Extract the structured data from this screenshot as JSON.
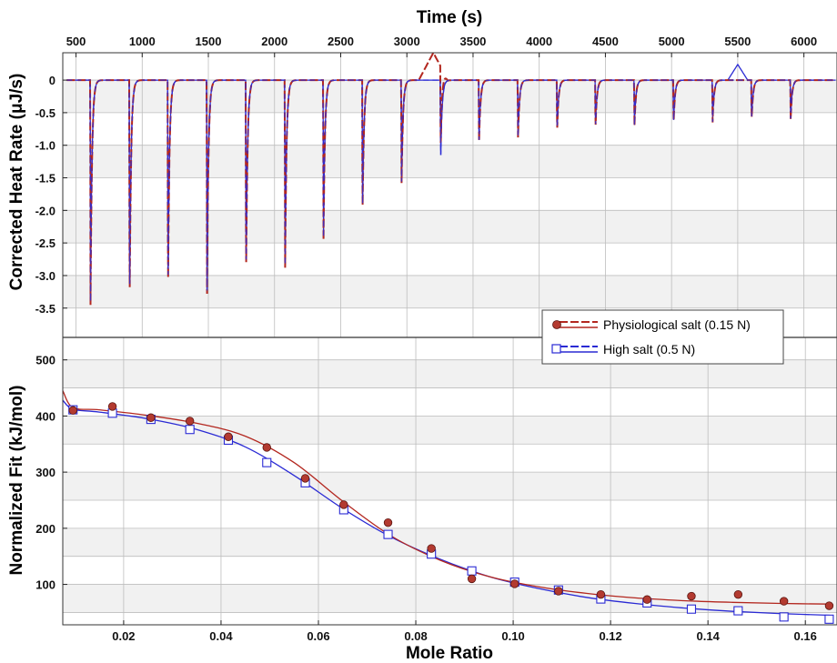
{
  "colors": {
    "physiological": "#b3271f",
    "physiological_marker": "#b33a30",
    "high": "#2a2ad4",
    "band": "#f1f1f1",
    "grid": "#bdbdbd"
  },
  "chart_data": [
    {
      "type": "line",
      "panel": "top",
      "xlabel": "Time (s)",
      "ylabel": "Corrected Heat Rate (μJ/s)",
      "xlim": [
        400,
        6250
      ],
      "ylim": [
        -3.95,
        0.42
      ],
      "x_ticks": [
        500,
        1000,
        1500,
        2000,
        2500,
        3000,
        3500,
        4000,
        4500,
        5000,
        5500,
        6000
      ],
      "y_ticks": [
        0,
        -0.5,
        -1.0,
        -1.5,
        -2.0,
        -2.5,
        -3.0,
        -3.5
      ],
      "y_tick_labels": [
        "0",
        "-0.5",
        "-1.0",
        "-1.5",
        "-2.0",
        "-2.5",
        "-3.0",
        "-3.5"
      ],
      "grid": true,
      "injections": [
        {
          "t": 610,
          "peak": -3.45
        },
        {
          "t": 905,
          "peak": -3.48
        },
        {
          "t": 1195,
          "peak": -3.32
        },
        {
          "t": 1490,
          "peak": -3.28
        },
        {
          "t": 1785,
          "peak": -3.06
        },
        {
          "t": 2080,
          "peak": -2.88
        },
        {
          "t": 2370,
          "peak": -2.45
        },
        {
          "t": 2665,
          "peak": -2.1
        },
        {
          "t": 2960,
          "peak": -1.58
        },
        {
          "t": 3255,
          "peak": -1.28
        },
        {
          "t": 3545,
          "peak": -1.02
        },
        {
          "t": 3840,
          "peak": -0.88
        },
        {
          "t": 4135,
          "peak": -0.8
        },
        {
          "t": 4425,
          "peak": -0.75
        },
        {
          "t": 4720,
          "peak": -0.7
        },
        {
          "t": 5015,
          "peak": -0.68
        },
        {
          "t": 5310,
          "peak": -0.65
        },
        {
          "t": 5605,
          "peak": -0.62
        },
        {
          "t": 5900,
          "peak": -0.6
        }
      ],
      "artifacts": [
        {
          "series": "Physiological salt (0.15 N)",
          "t": 3200,
          "height": 0.42
        },
        {
          "series": "High salt (0.5 N)",
          "t": 5500,
          "height": 0.24
        }
      ]
    },
    {
      "type": "scatter",
      "panel": "bottom",
      "xlabel": "Mole Ratio",
      "ylabel": "Normalized Fit (kJ/mol)",
      "xlim": [
        0.0075,
        0.1665
      ],
      "ylim": [
        28,
        540
      ],
      "x_ticks": [
        0.02,
        0.04,
        0.06,
        0.08,
        0.1,
        0.12,
        0.14,
        0.16
      ],
      "y_ticks": [
        100,
        200,
        300,
        400,
        500
      ],
      "grid": true,
      "legend_position": "top-right",
      "series": [
        {
          "name": "Physiological salt (0.15 N)",
          "marker": "circle",
          "x": [
            0.0096,
            0.0177,
            0.0256,
            0.0336,
            0.0415,
            0.0494,
            0.0573,
            0.0652,
            0.0743,
            0.0832,
            0.0915,
            0.1003,
            0.1093,
            0.118,
            0.1275,
            0.1366,
            0.1462,
            0.1556,
            0.1649
          ],
          "y": [
            410,
            417,
            397,
            391,
            363,
            344,
            289,
            242,
            210,
            164,
            110,
            101,
            88,
            82,
            73,
            79,
            82,
            70,
            62
          ],
          "fit_x": [
            0.0075,
            0.0096,
            0.015,
            0.025,
            0.035,
            0.045,
            0.055,
            0.065,
            0.075,
            0.085,
            0.095,
            0.105,
            0.115,
            0.125,
            0.135,
            0.145,
            0.155,
            0.165
          ],
          "fit_y": [
            445,
            415,
            411,
            401,
            387,
            364,
            317,
            248,
            186,
            143,
            114,
            96,
            84,
            76,
            71,
            68,
            66,
            65
          ]
        },
        {
          "name": "High salt (0.5 N)",
          "marker": "square",
          "x": [
            0.0096,
            0.0177,
            0.0256,
            0.0336,
            0.0415,
            0.0494,
            0.0573,
            0.0652,
            0.0743,
            0.0832,
            0.0915,
            0.1003,
            0.1093,
            0.118,
            0.1275,
            0.1366,
            0.1462,
            0.1556,
            0.1649
          ],
          "y": [
            411,
            405,
            394,
            376,
            357,
            317,
            281,
            233,
            189,
            154,
            124,
            104,
            90,
            74,
            67,
            56,
            53,
            42,
            38
          ],
          "fit_x": [
            0.0075,
            0.0096,
            0.015,
            0.025,
            0.035,
            0.045,
            0.055,
            0.065,
            0.075,
            0.085,
            0.095,
            0.105,
            0.115,
            0.125,
            0.135,
            0.145,
            0.155,
            0.165
          ],
          "fit_y": [
            428,
            412,
            407,
            395,
            376,
            345,
            294,
            235,
            184,
            145,
            114,
            93,
            77,
            66,
            58,
            52,
            48,
            45
          ]
        }
      ]
    }
  ]
}
